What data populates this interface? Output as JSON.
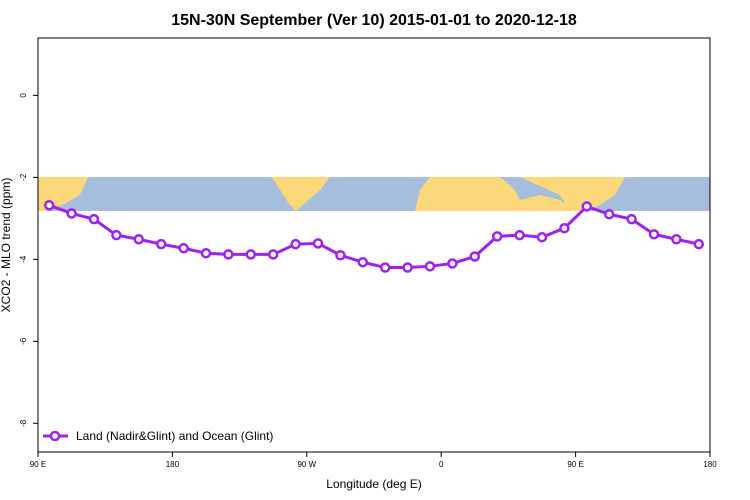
{
  "chart_data": {
    "type": "line",
    "title": "15N-30N September (Ver 10)   2015-01-01 to 2020-12-18",
    "x_label": "Longitude (deg E)",
    "y_label": "XCO2 - MLO trend (ppm)",
    "x": [
      97.5,
      112.5,
      127.5,
      142.5,
      157.5,
      172.5,
      187.5,
      202.5,
      217.5,
      232.5,
      247.5,
      262.5,
      277.5,
      292.5,
      307.5,
      322.5,
      337.5,
      352.5,
      367.5,
      382.5,
      397.5,
      412.5,
      427.5,
      442.5,
      457.5,
      472.5,
      487.5,
      502.5,
      517.5,
      532.5
    ],
    "series": [
      {
        "name": "Land (Nadir&Glint) and Ocean (Glint)",
        "color": "#a020f0",
        "values": [
          -2.68,
          -2.88,
          -3.02,
          -3.41,
          -3.51,
          -3.63,
          -3.73,
          -3.85,
          -3.88,
          -3.88,
          -3.88,
          -3.63,
          -3.61,
          -3.9,
          -4.07,
          -4.2,
          -4.2,
          -4.17,
          -4.1,
          -3.93,
          -3.44,
          -3.41,
          -3.46,
          -3.24,
          -2.71,
          -2.9,
          -3.02,
          -3.39,
          -3.51,
          -3.63
        ]
      }
    ],
    "xlim": [
      90,
      540
    ],
    "xticks": [
      {
        "value": 90,
        "label": "90 E"
      },
      180,
      {
        "value": 270,
        "label": "90 W"
      },
      {
        "value": 360,
        "label": "0"
      },
      {
        "value": 450,
        "label": "90 E"
      },
      {
        "value": 540,
        "label": "180"
      }
    ],
    "ylim": [
      -8.7,
      1.4
    ],
    "yticks": [
      -8,
      -6,
      -4,
      -2,
      0
    ],
    "legend": "bottom-left"
  }
}
